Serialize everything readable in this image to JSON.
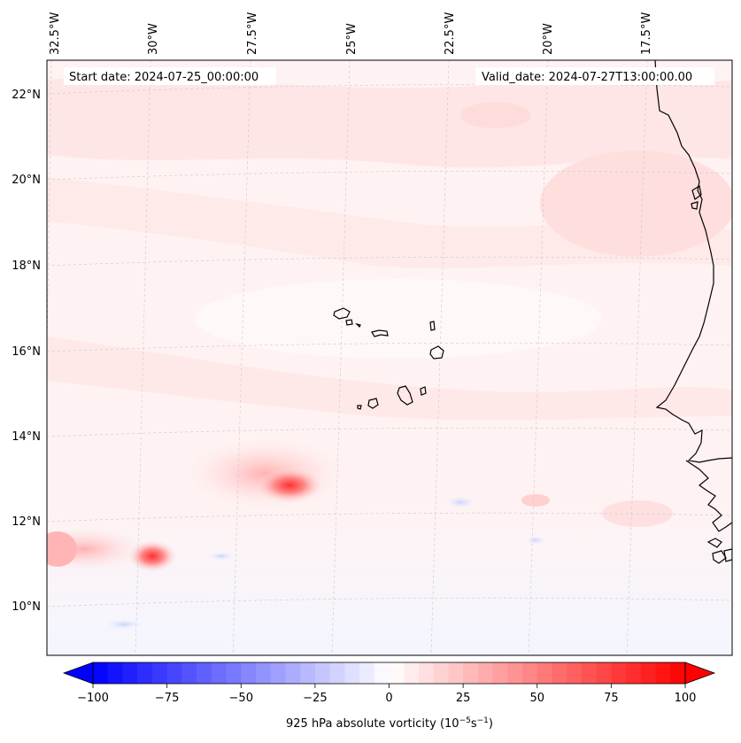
{
  "header": {
    "start_date": "Start date: 2024-07-25_00:00:00",
    "valid_date": "Valid_date: 2024-07-27T13:00:00.00"
  },
  "map": {
    "lon_labels": [
      "32.5°W",
      "30°W",
      "27.5°W",
      "25°W",
      "22.5°W",
      "20°W",
      "17.5°W"
    ],
    "lat_labels": [
      "22°N",
      "20°N",
      "18°N",
      "16°N",
      "14°N",
      "12°N",
      "10°N"
    ]
  },
  "colorbar": {
    "label": "925 hPa absolute vorticity (10",
    "label_exp1": "−5",
    "label_unit": "s",
    "label_exp2": "−1",
    "label_close": ")",
    "min": -100,
    "max": 100,
    "ticks": [
      "−100",
      "−75",
      "−50",
      "−25",
      "0",
      "25",
      "50",
      "75",
      "100"
    ],
    "tick_values": [
      -100,
      -75,
      -50,
      -25,
      0,
      25,
      50,
      75,
      100
    ],
    "neg_color": "#0000ff",
    "pos_color": "#ff0000"
  },
  "colors": {
    "background_field": "#fff3f3",
    "coast": "#000000",
    "grid": "#c8c8c8"
  }
}
